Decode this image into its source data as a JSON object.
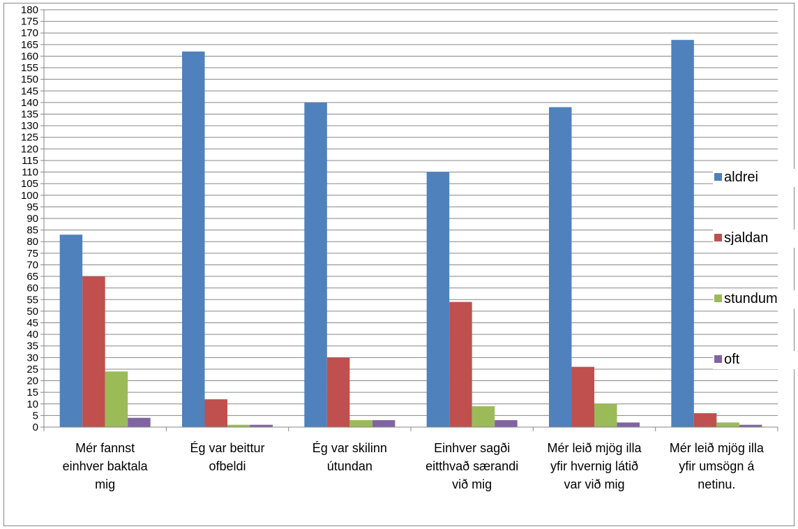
{
  "chart_data": {
    "type": "bar",
    "title": "",
    "xlabel": "",
    "ylabel": "",
    "ylim": [
      0,
      180
    ],
    "ytick_step": 5,
    "grid": true,
    "legend_position": "right",
    "categories": [
      [
        "Mér fannst",
        "einhver baktala",
        "mig"
      ],
      [
        "Ég var beittur",
        "ofbeldi"
      ],
      [
        "Ég var skilinn",
        "útundan"
      ],
      [
        "Einhver sagði",
        "eitthvað særandi",
        "við mig"
      ],
      [
        "Mér leið mjög illa",
        "yfir hvernig látið",
        "var við mig"
      ],
      [
        "Mér leið mjög illa",
        "yfir umsögn á",
        "netinu."
      ]
    ],
    "series": [
      {
        "name": "aldrei",
        "color": "#4F81BD",
        "values": [
          83,
          162,
          140,
          110,
          138,
          167
        ]
      },
      {
        "name": "sjaldan",
        "color": "#C0504D",
        "values": [
          65,
          12,
          30,
          54,
          26,
          6
        ]
      },
      {
        "name": "stundum",
        "color": "#9BBB59",
        "values": [
          24,
          1,
          3,
          9,
          10,
          2
        ]
      },
      {
        "name": "oft",
        "color": "#8064A2",
        "values": [
          4,
          1,
          3,
          3,
          2,
          1
        ]
      }
    ]
  }
}
